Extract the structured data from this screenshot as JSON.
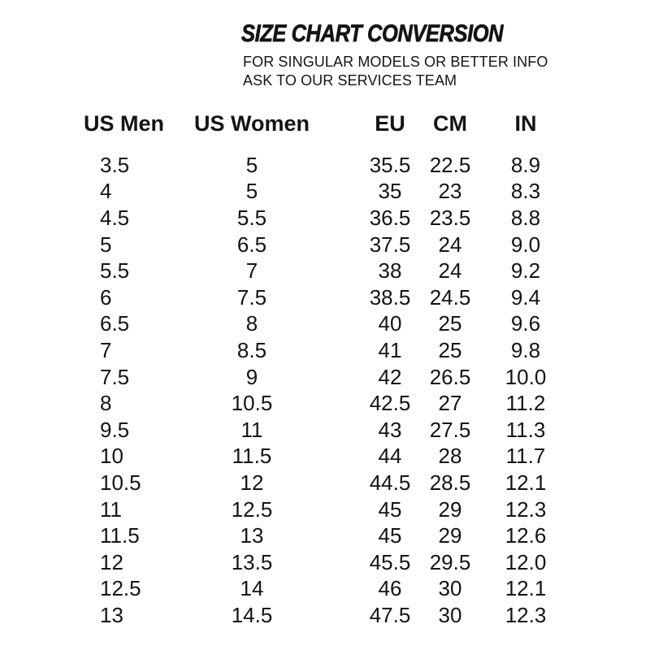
{
  "chart_data": {
    "type": "table",
    "title": "SIZE CHART CONVERSION",
    "subtitle_lines": [
      "FOR SINGULAR MODELS OR BETTER INFO",
      "ASK TO OUR SERVICES TEAM"
    ],
    "columns": [
      "US Men",
      "US Women",
      "EU",
      "CM",
      "IN"
    ],
    "rows": [
      [
        "3.5",
        "5",
        "35.5",
        "22.5",
        "8.9"
      ],
      [
        "4",
        "5",
        "35",
        "23",
        "8.3"
      ],
      [
        "4.5",
        "5.5",
        "36.5",
        "23.5",
        "8.8"
      ],
      [
        "5",
        "6.5",
        "37.5",
        "24",
        "9.0"
      ],
      [
        "5.5",
        "7",
        "38",
        "24",
        "9.2"
      ],
      [
        "6",
        "7.5",
        "38.5",
        "24.5",
        "9.4"
      ],
      [
        "6.5",
        "8",
        "40",
        "25",
        "9.6"
      ],
      [
        "7",
        "8.5",
        "41",
        "25",
        "9.8"
      ],
      [
        "7.5",
        "9",
        "42",
        "26.5",
        "10.0"
      ],
      [
        "8",
        "10.5",
        "42.5",
        "27",
        "11.2"
      ],
      [
        "9.5",
        "11",
        "43",
        "27.5",
        "11.3"
      ],
      [
        "10",
        "11.5",
        "44",
        "28",
        "11.7"
      ],
      [
        "10.5",
        "12",
        "44.5",
        "28.5",
        "12.1"
      ],
      [
        "11",
        "12.5",
        "45",
        "29",
        "12.3"
      ],
      [
        "11.5",
        "13",
        "45",
        "29",
        "12.6"
      ],
      [
        "12",
        "13.5",
        "45.5",
        "29.5",
        "12.0"
      ],
      [
        "12.5",
        "14",
        "46",
        "30",
        "12.1"
      ],
      [
        "13",
        "14.5",
        "47.5",
        "30",
        "12.3"
      ]
    ],
    "layout": {
      "grid": "off",
      "header_style": "bold",
      "alignment": [
        "left",
        "center",
        "center",
        "center",
        "center"
      ]
    }
  },
  "colors": {
    "text": "#141414",
    "background": "#ffffff"
  }
}
